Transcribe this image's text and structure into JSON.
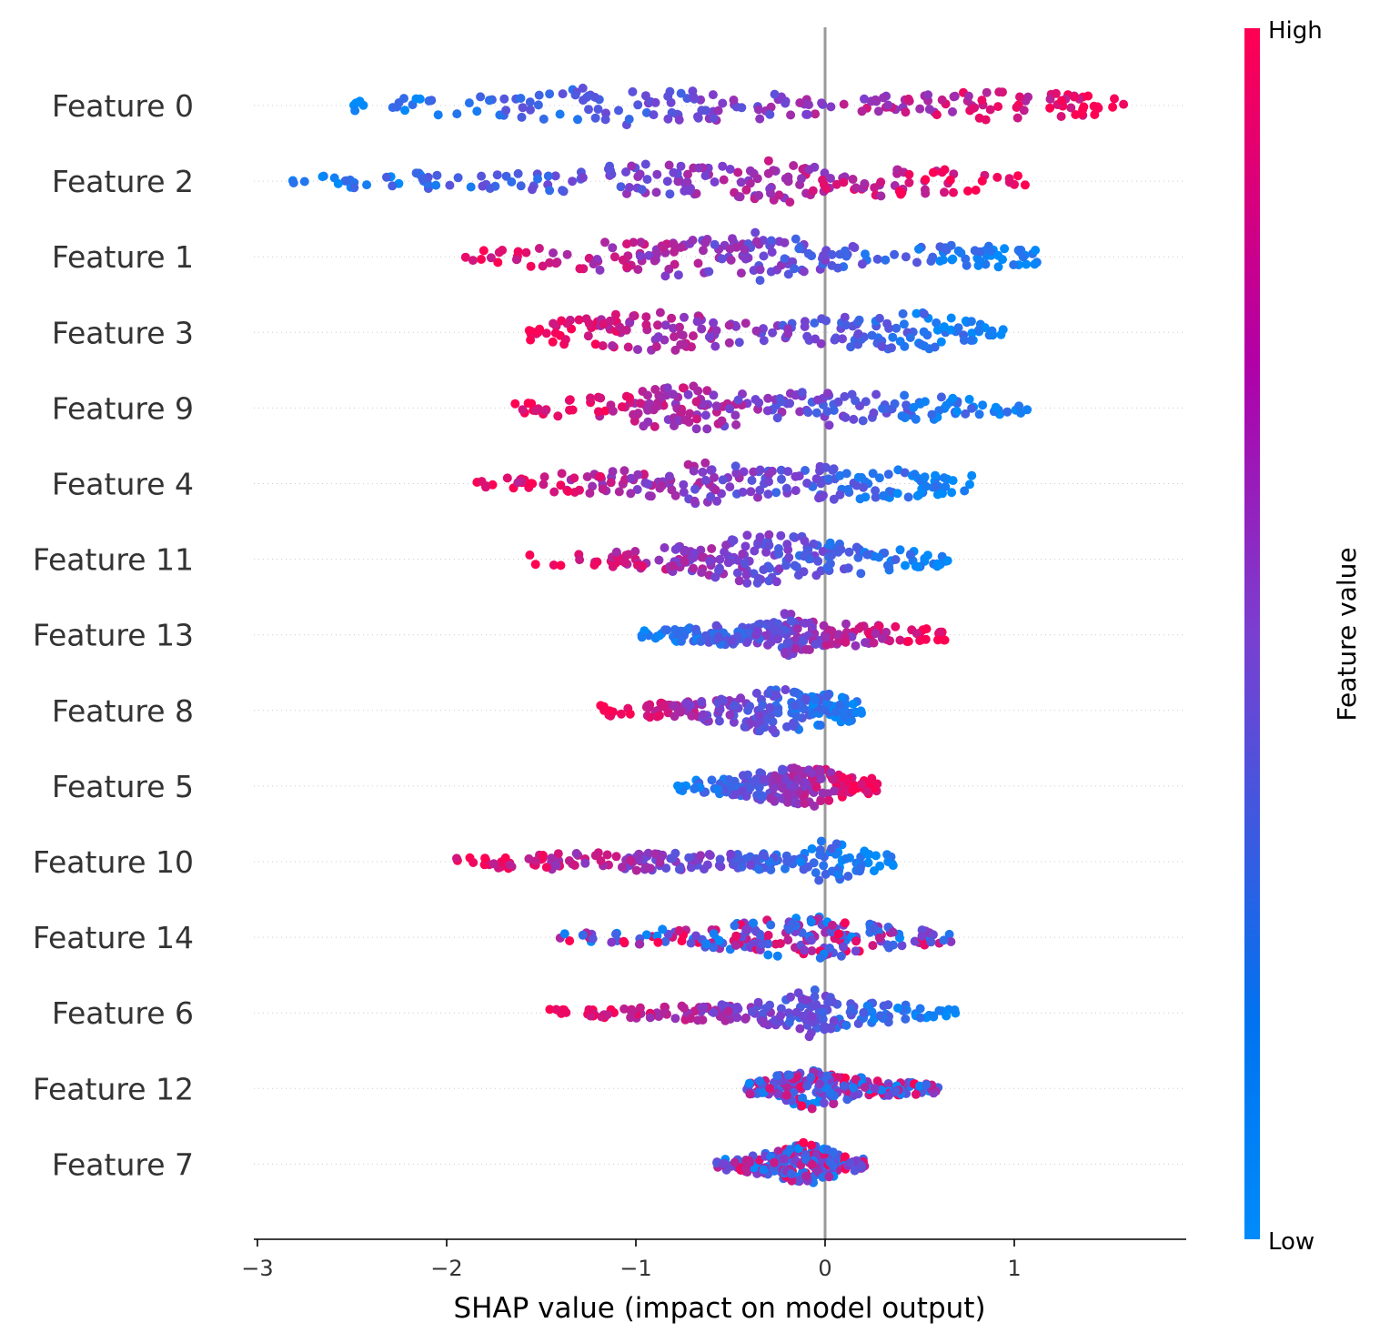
{
  "chart_data": {
    "type": "scatter",
    "subtype": "shap-beeswarm",
    "xlabel": "SHAP value (impact on model output)",
    "xlim": [
      -3.0,
      1.9
    ],
    "xticks": [
      -3,
      -2,
      -1,
      0,
      1
    ],
    "xtick_labels": [
      "−3",
      "−2",
      "−1",
      "0",
      "1"
    ],
    "zero_line": 0,
    "grid": false,
    "colorbar": {
      "title": "Feature value",
      "high_label": "High",
      "low_label": "Low",
      "high_color": "#ff0052",
      "mid_color": "#b000a8",
      "low_color": "#008bfb"
    },
    "features": [
      {
        "name": "Feature 0",
        "range": [
          -2.55,
          1.68
        ],
        "density": [
          [
            -2.5,
            0.25
          ],
          [
            -2.1,
            0.35
          ],
          [
            -1.8,
            0.45
          ],
          [
            -1.55,
            0.5
          ],
          [
            -1.1,
            0.9
          ],
          [
            -0.9,
            0.55
          ],
          [
            -0.45,
            0.6
          ],
          [
            0.0,
            0.35
          ],
          [
            0.5,
            0.4
          ],
          [
            0.8,
            0.6
          ],
          [
            1.3,
            0.45
          ],
          [
            1.65,
            0.25
          ]
        ],
        "color_trend": "increasing",
        "n": 200
      },
      {
        "name": "Feature 2",
        "range": [
          -2.82,
          1.06
        ],
        "density": [
          [
            -2.8,
            0.15
          ],
          [
            -2.3,
            0.35
          ],
          [
            -1.8,
            0.3
          ],
          [
            -1.45,
            0.4
          ],
          [
            -1.0,
            0.7
          ],
          [
            -0.55,
            0.6
          ],
          [
            -0.22,
            1.0
          ],
          [
            0.0,
            0.4
          ],
          [
            0.3,
            0.6
          ],
          [
            0.6,
            0.5
          ],
          [
            1.0,
            0.25
          ]
        ],
        "color_trend": "increasing",
        "n": 200
      },
      {
        "name": "Feature 1",
        "range": [
          -2.05,
          1.12
        ],
        "density": [
          [
            -2.0,
            0.2
          ],
          [
            -1.6,
            0.35
          ],
          [
            -1.15,
            0.6
          ],
          [
            -0.85,
            0.8
          ],
          [
            -0.5,
            0.7
          ],
          [
            -0.35,
            1.0
          ],
          [
            0.0,
            0.5
          ],
          [
            0.3,
            0.35
          ],
          [
            0.7,
            0.55
          ],
          [
            1.1,
            0.3
          ]
        ],
        "color_trend": "decreasing",
        "n": 200
      },
      {
        "name": "Feature 3",
        "range": [
          -1.62,
          0.95
        ],
        "density": [
          [
            -1.6,
            0.25
          ],
          [
            -1.3,
            0.6
          ],
          [
            -1.15,
            0.7
          ],
          [
            -0.8,
            0.8
          ],
          [
            -0.5,
            0.5
          ],
          [
            -0.2,
            0.45
          ],
          [
            0.1,
            0.6
          ],
          [
            0.3,
            0.7
          ],
          [
            0.5,
            0.8
          ],
          [
            0.8,
            0.4
          ],
          [
            0.95,
            0.2
          ]
        ],
        "color_trend": "decreasing",
        "n": 200
      },
      {
        "name": "Feature 9",
        "range": [
          -1.65,
          1.08
        ],
        "density": [
          [
            -1.6,
            0.2
          ],
          [
            -1.2,
            0.45
          ],
          [
            -0.9,
            0.8
          ],
          [
            -0.62,
            0.9
          ],
          [
            -0.3,
            0.5
          ],
          [
            0.0,
            0.7
          ],
          [
            0.3,
            0.6
          ],
          [
            0.6,
            0.45
          ],
          [
            1.05,
            0.2
          ]
        ],
        "color_trend": "decreasing",
        "n": 200
      },
      {
        "name": "Feature 4",
        "range": [
          -1.88,
          0.8
        ],
        "density": [
          [
            -1.85,
            0.15
          ],
          [
            -1.3,
            0.45
          ],
          [
            -0.95,
            0.55
          ],
          [
            -0.7,
            1.0
          ],
          [
            -0.3,
            0.5
          ],
          [
            0.0,
            0.7
          ],
          [
            0.35,
            0.6
          ],
          [
            0.8,
            0.35
          ]
        ],
        "color_trend": "decreasing",
        "n": 200
      },
      {
        "name": "Feature 11",
        "range": [
          -1.6,
          0.67
        ],
        "density": [
          [
            -1.55,
            0.2
          ],
          [
            -1.0,
            0.35
          ],
          [
            -0.75,
            0.55
          ],
          [
            -0.45,
            0.95
          ],
          [
            -0.2,
            1.0
          ],
          [
            0.1,
            0.6
          ],
          [
            0.35,
            0.5
          ],
          [
            0.65,
            0.25
          ]
        ],
        "color_trend": "decreasing",
        "n": 200
      },
      {
        "name": "Feature 13",
        "range": [
          -0.97,
          0.65
        ],
        "density": [
          [
            -0.95,
            0.2
          ],
          [
            -0.6,
            0.35
          ],
          [
            -0.3,
            0.5
          ],
          [
            -0.2,
            1.0
          ],
          [
            0.0,
            0.45
          ],
          [
            0.2,
            0.45
          ],
          [
            0.45,
            0.3
          ],
          [
            0.65,
            0.2
          ]
        ],
        "color_trend": "increasing",
        "n": 200
      },
      {
        "name": "Feature 8",
        "range": [
          -1.2,
          0.2
        ],
        "density": [
          [
            -1.2,
            0.2
          ],
          [
            -0.7,
            0.35
          ],
          [
            -0.45,
            0.6
          ],
          [
            -0.3,
            0.95
          ],
          [
            -0.15,
            0.9
          ],
          [
            0.0,
            0.7
          ],
          [
            0.2,
            0.3
          ]
        ],
        "color_trend": "decreasing",
        "n": 200
      },
      {
        "name": "Feature 5",
        "range": [
          -0.78,
          0.28
        ],
        "density": [
          [
            -0.75,
            0.2
          ],
          [
            -0.5,
            0.35
          ],
          [
            -0.2,
            0.7
          ],
          [
            -0.05,
            0.9
          ],
          [
            0.05,
            0.5
          ],
          [
            0.25,
            0.3
          ]
        ],
        "color_trend": "increasing",
        "n": 200
      },
      {
        "name": "Feature 10",
        "range": [
          -1.98,
          0.38
        ],
        "density": [
          [
            -1.95,
            0.15
          ],
          [
            -1.5,
            0.35
          ],
          [
            -1.0,
            0.35
          ],
          [
            -0.5,
            0.3
          ],
          [
            -0.1,
            0.35
          ],
          [
            0.0,
            0.95
          ],
          [
            0.15,
            0.5
          ],
          [
            0.35,
            0.25
          ]
        ],
        "color_trend": "decreasing",
        "n": 200
      },
      {
        "name": "Feature 14",
        "range": [
          -1.4,
          0.68
        ],
        "density": [
          [
            -1.4,
            0.2
          ],
          [
            -0.95,
            0.3
          ],
          [
            -0.55,
            0.5
          ],
          [
            -0.25,
            0.75
          ],
          [
            -0.1,
            0.9
          ],
          [
            0.1,
            0.75
          ],
          [
            0.35,
            0.4
          ],
          [
            0.65,
            0.25
          ]
        ],
        "color_trend": "mixed",
        "n": 200
      },
      {
        "name": "Feature 6",
        "range": [
          -1.5,
          0.72
        ],
        "density": [
          [
            -1.5,
            0.15
          ],
          [
            -1.3,
            0.15
          ],
          [
            -0.45,
            0.35
          ],
          [
            -0.2,
            0.6
          ],
          [
            -0.08,
            1.0
          ],
          [
            0.1,
            0.5
          ],
          [
            0.4,
            0.35
          ],
          [
            0.7,
            0.2
          ]
        ],
        "color_trend": "decreasing",
        "n": 200
      },
      {
        "name": "Feature 12",
        "range": [
          -0.42,
          0.62
        ],
        "density": [
          [
            -0.4,
            0.25
          ],
          [
            -0.2,
            0.6
          ],
          [
            -0.1,
            0.95
          ],
          [
            0.05,
            0.6
          ],
          [
            0.3,
            0.3
          ],
          [
            0.6,
            0.2
          ]
        ],
        "color_trend": "mixed",
        "n": 200
      },
      {
        "name": "Feature 7",
        "range": [
          -0.58,
          0.22
        ],
        "density": [
          [
            -0.55,
            0.2
          ],
          [
            -0.3,
            0.45
          ],
          [
            -0.1,
            0.9
          ],
          [
            0.05,
            0.5
          ],
          [
            0.2,
            0.25
          ]
        ],
        "color_trend": "mixed",
        "n": 200
      }
    ]
  }
}
